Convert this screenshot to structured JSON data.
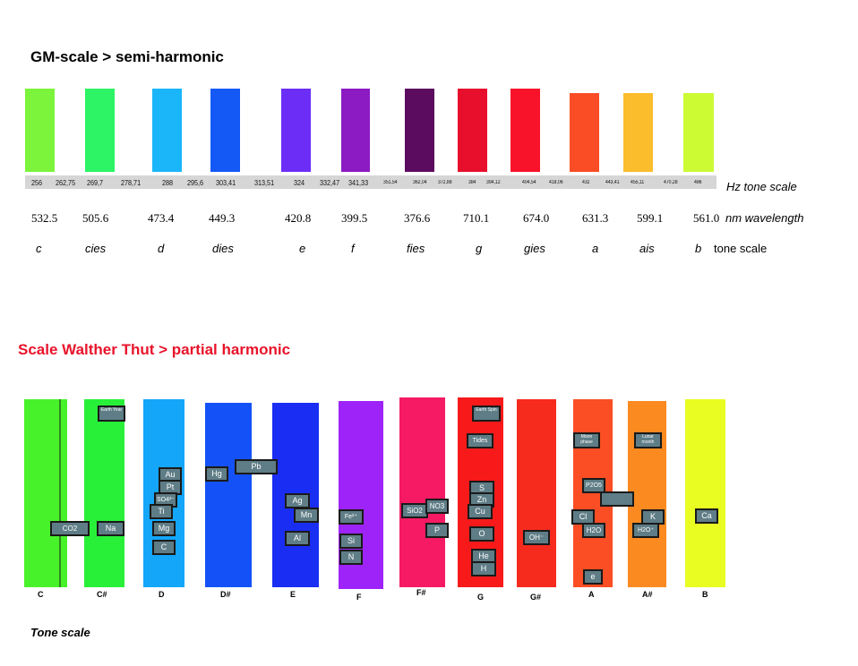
{
  "gm": {
    "title": "GM-scale > semi-harmonic",
    "bar_colors": [
      "#7bf43b",
      "#2cf464",
      "#1bb6f9",
      "#1459f6",
      "#6c2ef6",
      "#8c1bc4",
      "#5c0c5e",
      "#e80f2c",
      "#f8132a",
      "#fb4d25",
      "#fbbd2c",
      "#ccfb34"
    ],
    "hz_values": [
      "256",
      "262,75",
      "269,7",
      "278,71",
      "288",
      "295,6",
      "303,41",
      "313,51",
      "324",
      "332,47",
      "341,33",
      "351,54",
      "362,04",
      "372,88",
      "384",
      "394,12",
      "404,54",
      "418,06",
      "432",
      "443,41",
      "455,11",
      "470,28",
      "486"
    ],
    "hz_label": "Hz tone scale",
    "wavelengths": [
      "532.5",
      "505.6",
      "473.4",
      "449.3",
      "420.8",
      "399.5",
      "376.6",
      "710.1",
      "674.0",
      "631.3",
      "599.1",
      "561.0"
    ],
    "wavelength_label": "nm wavelength",
    "tone_names": [
      "c",
      "cies",
      "d",
      "dies",
      "e",
      "f",
      "fies",
      "g",
      "gies",
      "a",
      "ais",
      "b"
    ],
    "tone_label": "tone scale"
  },
  "thut": {
    "title": "Scale Walther Thut > partial harmonic",
    "bar_colors": [
      "#48f22a",
      "#28f039",
      "#13a6f9",
      "#1452f7",
      "#1a2ef3",
      "#9d23f8",
      "#f51a63",
      "#f81a1a",
      "#f62b1e",
      "#fb4e24",
      "#fb8a20",
      "#e9fd22"
    ],
    "notes": [
      "C",
      "C#",
      "D",
      "D#",
      "E",
      "F",
      "F#",
      "G",
      "G#",
      "A",
      "A#",
      "B"
    ],
    "elements": {
      "c_co2": "CO2",
      "cs_earthyear": "Earth Year",
      "cs_na": "Na",
      "d_au": "Au",
      "d_pt": "Pt",
      "d_so4": "SO4²⁻",
      "d_ti": "Ti",
      "d_mg": "Mg",
      "d_c": "C",
      "ds_hg": "Hg",
      "ds_pb": "Pb",
      "e_ag": "Ag",
      "e_mn": "Mn",
      "e_al": "Al",
      "f_fe": "Fe²⁺",
      "f_si": "Si",
      "f_n": "N",
      "fs_sio2": "SiO2",
      "fs_no3": "NO3",
      "fs_p": "P",
      "g_earthspin": "Earth Spin",
      "g_tides": "Tides",
      "g_s": "S",
      "g_zn": "Zn",
      "g_cu": "Cu",
      "g_o": "O",
      "g_he": "He",
      "g_h": "H",
      "gs_oh": "OH⁻",
      "a_moon": "Moon phase",
      "a_p2o5": "P2O5",
      "a_cl": "Cl",
      "a_h2o": "H2O",
      "a_e": "e",
      "as_lunar": "Lunar month",
      "as_k": "K",
      "as_h2o": "H2O⁺",
      "b_ca": "Ca"
    },
    "footer": "Tone scale"
  }
}
